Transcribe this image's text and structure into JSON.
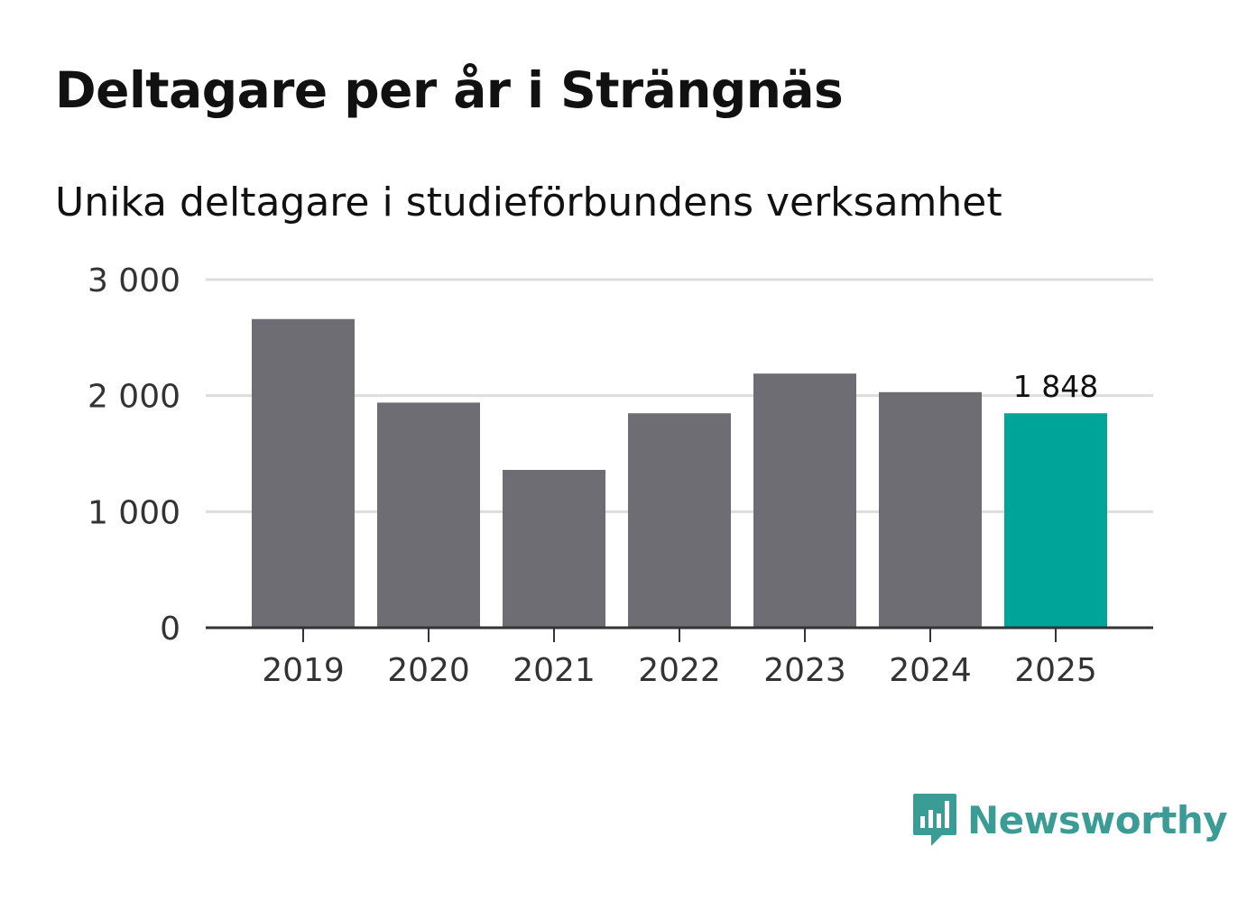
{
  "chart_data": {
    "type": "bar",
    "title": "Deltagare per år i Strängnäs",
    "subtitle": "Unika deltagare i studieförbundens verksamhet",
    "categories": [
      "2019",
      "2020",
      "2021",
      "2022",
      "2023",
      "2024",
      "2025"
    ],
    "values": [
      2660,
      1940,
      1360,
      1848,
      2190,
      2030,
      1848
    ],
    "highlight_index": 6,
    "highlight_label": "1 848",
    "ylim": [
      0,
      3000
    ],
    "yticks": [
      0,
      1000,
      2000,
      3000
    ],
    "ytick_labels": [
      "0",
      "1 000",
      "2 000",
      "3 000"
    ],
    "xlabel": "",
    "ylabel": "",
    "grid": true,
    "colors": {
      "bar": "#6e6d73",
      "highlight": "#00a499",
      "grid": "#dddddd",
      "axis": "#333333",
      "text": "#333333"
    }
  },
  "brand": {
    "name": "Newsworthy",
    "icon": "newsworthy-logo-icon",
    "color": "#3a9c94"
  }
}
